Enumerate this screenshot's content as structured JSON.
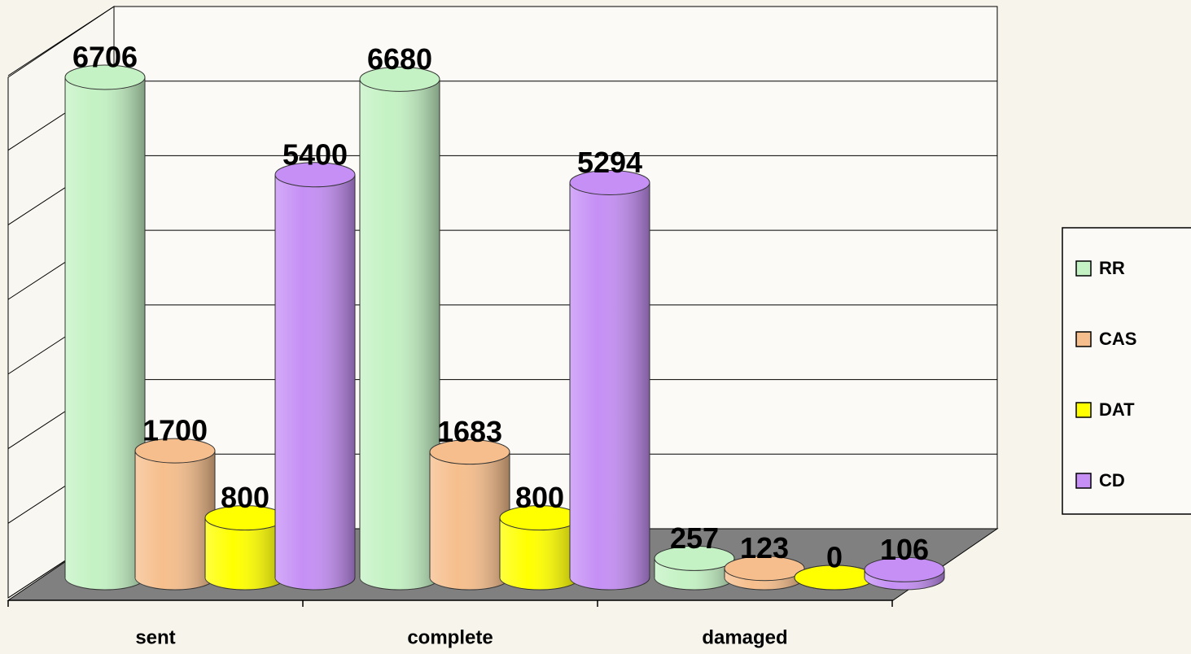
{
  "chart_data": {
    "type": "bar3d",
    "categories": [
      "sent",
      "complete",
      "damaged"
    ],
    "series": [
      {
        "name": "RR",
        "color": "#c4f2c4",
        "values": [
          6706,
          6680,
          257
        ]
      },
      {
        "name": "CAS",
        "color": "#f6be8c",
        "values": [
          1700,
          1683,
          123
        ]
      },
      {
        "name": "DAT",
        "color": "#ffff00",
        "values": [
          800,
          800,
          0
        ]
      },
      {
        "name": "CD",
        "color": "#c58ff5",
        "values": [
          5400,
          5294,
          106
        ]
      }
    ],
    "ylim": [
      0,
      7000
    ],
    "yticks": [
      0,
      1000,
      2000,
      3000,
      4000,
      5000,
      6000,
      7000
    ],
    "grid": true,
    "legend": "right"
  }
}
